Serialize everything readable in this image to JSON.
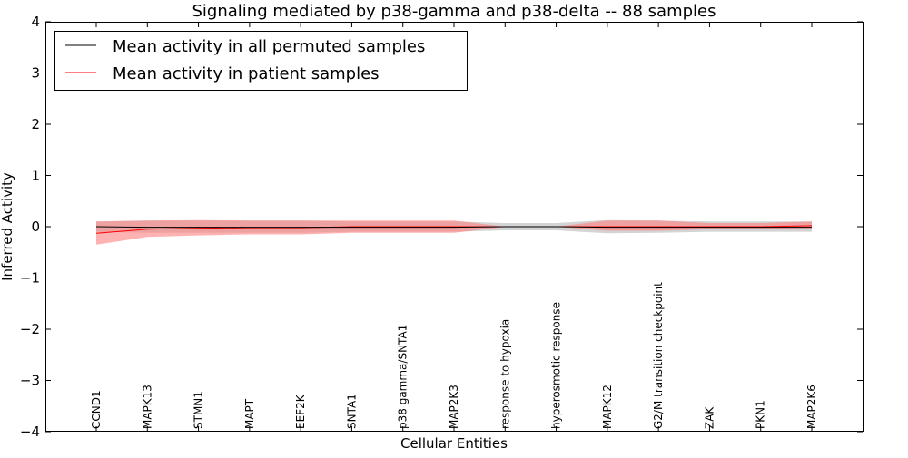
{
  "chart_data": {
    "type": "line",
    "title": "Signaling mediated by p38-gamma and p38-delta -- 88 samples",
    "xlabel": "Cellular Entities",
    "ylabel": "Inferred Activity",
    "ylim": [
      -4,
      4
    ],
    "yticks": [
      {
        "value": 4,
        "label": "4"
      },
      {
        "value": 3,
        "label": "3"
      },
      {
        "value": 2,
        "label": "2"
      },
      {
        "value": 1,
        "label": "1"
      },
      {
        "value": 0,
        "label": "0"
      },
      {
        "value": -1,
        "label": "−1"
      },
      {
        "value": -2,
        "label": "−2"
      },
      {
        "value": -3,
        "label": "−3"
      },
      {
        "value": -4,
        "label": "−4"
      }
    ],
    "categories": [
      "CCND1",
      "MAPK13",
      "STMN1",
      "MAPT",
      "EEF2K",
      "SNTA1",
      "p38 gamma/SNTA1",
      "MAP2K3",
      "response to hypoxia",
      "hyperosmotic response",
      "MAPK12",
      "G2/M transition checkpoint",
      "ZAK",
      "PKN1",
      "MAP2K6"
    ],
    "grid": false,
    "legend_position": "top-left",
    "series": [
      {
        "name": "Mean activity in all permuted samples",
        "color": "#000000",
        "band_color": "#a0a0a0",
        "values": [
          0.0,
          -0.01,
          -0.01,
          -0.01,
          -0.01,
          -0.01,
          -0.01,
          -0.01,
          0.0,
          0.0,
          -0.01,
          -0.01,
          -0.01,
          -0.01,
          -0.01
        ],
        "lower": [
          -0.1,
          -0.12,
          -0.12,
          -0.12,
          -0.12,
          -0.1,
          -0.1,
          -0.1,
          -0.07,
          -0.07,
          -0.13,
          -0.12,
          -0.1,
          -0.1,
          -0.1
        ],
        "upper": [
          0.1,
          0.12,
          0.12,
          0.12,
          0.12,
          0.1,
          0.1,
          0.1,
          0.07,
          0.07,
          0.13,
          0.12,
          0.1,
          0.1,
          0.1
        ]
      },
      {
        "name": "Mean activity in patient samples",
        "color": "#ff0000",
        "band_color": "#ff7f7f",
        "values": [
          -0.13,
          -0.05,
          -0.03,
          -0.02,
          -0.02,
          0.0,
          0.0,
          0.0,
          0.0,
          0.0,
          0.0,
          0.0,
          0.0,
          0.0,
          0.02
        ],
        "lower": [
          -0.35,
          -0.2,
          -0.17,
          -0.15,
          -0.15,
          -0.12,
          -0.12,
          -0.12,
          0.0,
          0.0,
          -0.08,
          -0.08,
          -0.05,
          -0.04,
          -0.03
        ],
        "upper": [
          0.1,
          0.12,
          0.13,
          0.12,
          0.12,
          0.12,
          0.12,
          0.12,
          0.0,
          0.0,
          0.12,
          0.12,
          0.07,
          0.07,
          0.1
        ]
      }
    ]
  }
}
